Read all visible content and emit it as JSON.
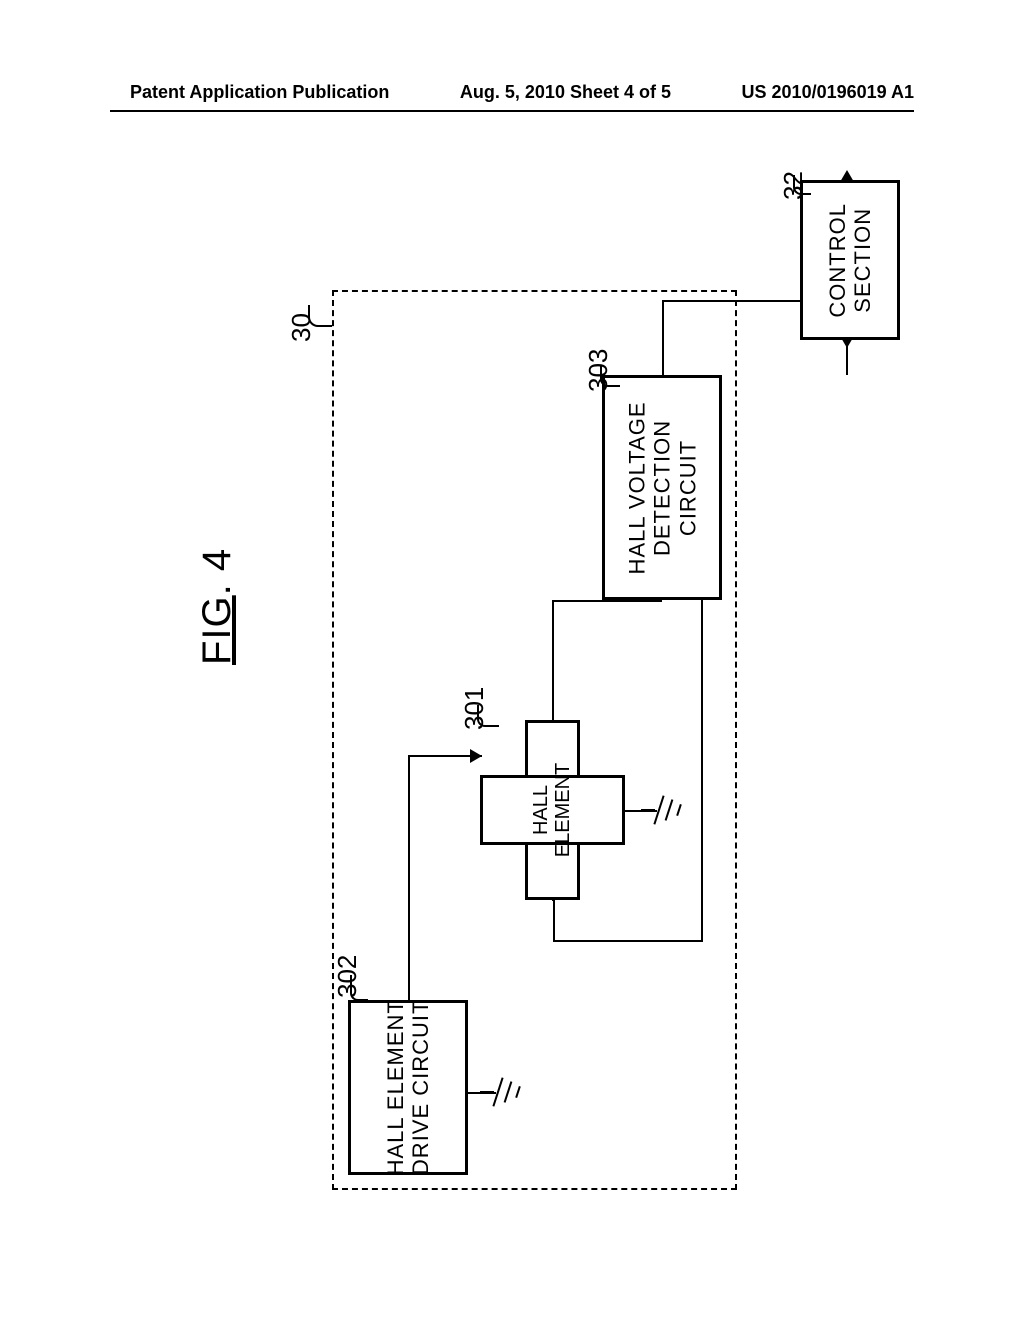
{
  "header": {
    "left": "Patent Application Publication",
    "center": "Aug. 5, 2010  Sheet 4 of 5",
    "right": "US 2010/0196019 A1"
  },
  "figure": {
    "title_prefix": "FIG",
    "title_number": "4"
  },
  "refs": {
    "group": "30",
    "hall_element": "301",
    "drive_circuit": "302",
    "detect_circuit": "303",
    "control": "32"
  },
  "blocks": {
    "hall_element": "HALL\nELEMENT",
    "drive_circuit": "HALL ELEMENT\nDRIVE CIRCUIT",
    "detect_circuit": "HALL VOLTAGE\nDETECTION\nCIRCUIT",
    "control": "CONTROL\nSECTION"
  },
  "style": {
    "stroke": "#000000",
    "dash": "2px dashed #000"
  }
}
